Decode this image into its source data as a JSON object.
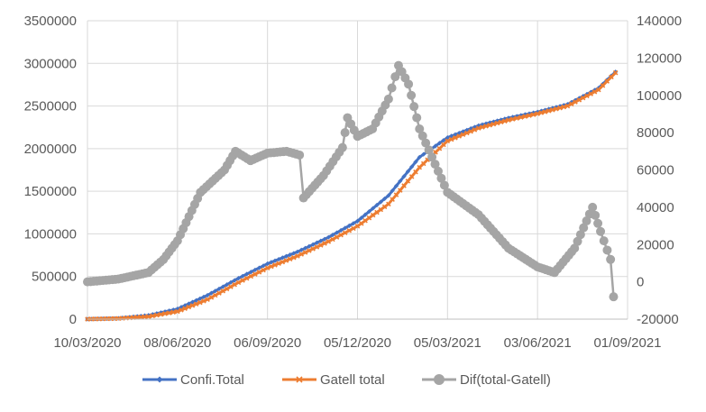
{
  "chart_data": {
    "type": "line",
    "x_ticks": [
      "10/03/2020",
      "08/06/2020",
      "06/09/2020",
      "05/12/2020",
      "05/03/2021",
      "03/06/2021",
      "01/09/2021"
    ],
    "y_left": {
      "min": 0,
      "max": 3500000,
      "step": 500000,
      "ticks": [
        "0",
        "500000",
        "1000000",
        "1500000",
        "2000000",
        "2500000",
        "3000000",
        "3500000"
      ]
    },
    "y_right": {
      "min": -20000,
      "max": 140000,
      "step": 20000,
      "ticks": [
        "-20000",
        "0",
        "20000",
        "40000",
        "60000",
        "80000",
        "100000",
        "120000",
        "140000"
      ]
    },
    "grid": "vertical and horizontal",
    "legend_position": "bottom",
    "series": [
      {
        "name": "Confi.Total",
        "axis": "left",
        "color": "#4472C4",
        "marker": "diamond",
        "points": [
          [
            "10/03/2020",
            0
          ],
          [
            "10/04/2020",
            10000
          ],
          [
            "10/05/2020",
            45000
          ],
          [
            "08/06/2020",
            120000
          ],
          [
            "08/07/2020",
            280000
          ],
          [
            "08/08/2020",
            480000
          ],
          [
            "06/09/2020",
            650000
          ],
          [
            "06/10/2020",
            790000
          ],
          [
            "06/11/2020",
            960000
          ],
          [
            "05/12/2020",
            1150000
          ],
          [
            "05/01/2021",
            1450000
          ],
          [
            "05/02/2021",
            1900000
          ],
          [
            "05/03/2021",
            2130000
          ],
          [
            "05/04/2021",
            2270000
          ],
          [
            "05/05/2021",
            2360000
          ],
          [
            "03/06/2021",
            2430000
          ],
          [
            "03/07/2021",
            2520000
          ],
          [
            "03/08/2021",
            2710000
          ],
          [
            "20/08/2021",
            2900000
          ]
        ]
      },
      {
        "name": "Gatell total",
        "axis": "left",
        "color": "#ED7D31",
        "marker": "x",
        "points": [
          [
            "10/03/2020",
            0
          ],
          [
            "10/04/2020",
            8000
          ],
          [
            "10/05/2020",
            30000
          ],
          [
            "08/06/2020",
            90000
          ],
          [
            "08/07/2020",
            230000
          ],
          [
            "08/08/2020",
            430000
          ],
          [
            "06/09/2020",
            600000
          ],
          [
            "06/10/2020",
            740000
          ],
          [
            "06/11/2020",
            910000
          ],
          [
            "05/12/2020",
            1090000
          ],
          [
            "05/01/2021",
            1350000
          ],
          [
            "05/02/2021",
            1780000
          ],
          [
            "05/03/2021",
            2090000
          ],
          [
            "05/04/2021",
            2240000
          ],
          [
            "05/05/2021",
            2335000
          ],
          [
            "03/06/2021",
            2410000
          ],
          [
            "03/07/2021",
            2500000
          ],
          [
            "03/08/2021",
            2690000
          ],
          [
            "20/08/2021",
            2890000
          ]
        ]
      },
      {
        "name": "Dif(total-Gatell)",
        "axis": "right",
        "color": "#A5A5A5",
        "marker": "circle",
        "points": [
          [
            "10/03/2020",
            0
          ],
          [
            "10/04/2020",
            1500
          ],
          [
            "10/05/2020",
            5000
          ],
          [
            "25/05/2020",
            12000
          ],
          [
            "08/06/2020",
            22000
          ],
          [
            "01/07/2020",
            48000
          ],
          [
            "25/07/2020",
            60000
          ],
          [
            "05/08/2020",
            70000
          ],
          [
            "20/08/2020",
            65000
          ],
          [
            "06/09/2020",
            69000
          ],
          [
            "25/09/2020",
            70000
          ],
          [
            "08/10/2020",
            68000
          ],
          [
            "12/10/2020",
            45000
          ],
          [
            "01/11/2020",
            57000
          ],
          [
            "20/11/2020",
            72000
          ],
          [
            "25/11/2020",
            88000
          ],
          [
            "05/12/2020",
            78000
          ],
          [
            "20/12/2020",
            82000
          ],
          [
            "05/01/2021",
            98000
          ],
          [
            "15/01/2021",
            116000
          ],
          [
            "25/01/2021",
            106000
          ],
          [
            "05/02/2021",
            82000
          ],
          [
            "05/03/2021",
            48000
          ],
          [
            "05/04/2021",
            36000
          ],
          [
            "05/05/2021",
            18000
          ],
          [
            "03/06/2021",
            8000
          ],
          [
            "20/06/2021",
            5000
          ],
          [
            "10/07/2021",
            18000
          ],
          [
            "28/07/2021",
            40000
          ],
          [
            "05/08/2021",
            27000
          ],
          [
            "15/08/2021",
            12000
          ],
          [
            "18/08/2021",
            -8000
          ]
        ]
      }
    ]
  }
}
